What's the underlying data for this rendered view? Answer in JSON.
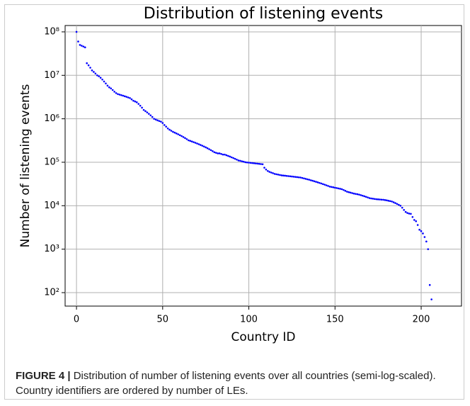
{
  "chart_data": {
    "type": "scatter",
    "title": "Distribution of listening events",
    "xlabel": "Country ID",
    "ylabel": "Number of listening events",
    "caption_label": "FIGURE 4 |",
    "caption_text": "Distribution of number of listening events over all countries (semi-log-scaled). Country identifiers are ordered by number of LEs.",
    "color": "#0000ff",
    "log_y": true,
    "grid": true,
    "xlim": [
      -6.6,
      223.4
    ],
    "ylim": [
      49,
      140000000.0
    ],
    "xticks": [
      0,
      50,
      100,
      150,
      200
    ],
    "yticks": [
      {
        "value": 100,
        "label": "10²"
      },
      {
        "value": 1000,
        "label": "10³"
      },
      {
        "value": 10000,
        "label": "10⁴"
      },
      {
        "value": 100000,
        "label": "10⁵"
      },
      {
        "value": 1000000,
        "label": "10⁶"
      },
      {
        "value": 10000000,
        "label": "10⁷"
      },
      {
        "value": 100000000,
        "label": "10⁸"
      }
    ],
    "x": [
      0,
      1,
      2,
      3,
      4,
      5,
      6,
      7,
      8,
      9,
      10,
      11,
      12,
      13,
      14,
      15,
      16,
      17,
      18,
      19,
      20,
      21,
      22,
      23,
      24,
      25,
      26,
      27,
      28,
      29,
      30,
      31,
      32,
      33,
      34,
      35,
      36,
      37,
      38,
      39,
      40,
      41,
      42,
      43,
      44,
      45,
      46,
      47,
      48,
      49,
      50,
      51,
      52,
      53,
      54,
      55,
      56,
      57,
      58,
      59,
      60,
      61,
      62,
      63,
      64,
      65,
      66,
      67,
      68,
      69,
      70,
      71,
      72,
      73,
      74,
      75,
      76,
      77,
      78,
      79,
      80,
      81,
      82,
      83,
      84,
      85,
      86,
      87,
      88,
      89,
      90,
      91,
      92,
      93,
      94,
      95,
      96,
      97,
      98,
      99,
      100,
      101,
      102,
      103,
      104,
      105,
      106,
      107,
      108,
      109,
      110,
      111,
      112,
      113,
      114,
      115,
      116,
      117,
      118,
      119,
      120,
      121,
      122,
      123,
      124,
      125,
      126,
      127,
      128,
      129,
      130,
      131,
      132,
      133,
      134,
      135,
      136,
      137,
      138,
      139,
      140,
      141,
      142,
      143,
      144,
      145,
      146,
      147,
      148,
      149,
      150,
      151,
      152,
      153,
      154,
      155,
      156,
      157,
      158,
      159,
      160,
      161,
      162,
      163,
      164,
      165,
      166,
      167,
      168,
      169,
      170,
      171,
      172,
      173,
      174,
      175,
      176,
      177,
      178,
      179,
      180,
      181,
      182,
      183,
      184,
      185,
      186,
      187,
      188,
      189,
      190,
      191,
      192,
      193,
      194,
      195,
      196,
      197,
      198,
      199,
      200,
      201,
      202,
      203,
      204,
      205,
      206
    ],
    "values": [
      100000000.0,
      60000000.0,
      50000000.0,
      48000000.0,
      46000000.0,
      44000000.0,
      19000000.0,
      17000000.0,
      15000000.0,
      13000000.0,
      12000000.0,
      11000000.0,
      10000000.0,
      9500000.0,
      8800000.0,
      8000000.0,
      7200000.0,
      6500000.0,
      5800000.0,
      5300000.0,
      5000000.0,
      4600000.0,
      4200000.0,
      3900000.0,
      3700000.0,
      3600000.0,
      3500000.0,
      3400000.0,
      3300000.0,
      3200000.0,
      3100000.0,
      3000000.0,
      2800000.0,
      2600000.0,
      2500000.0,
      2400000.0,
      2200000.0,
      2000000.0,
      1800000.0,
      1600000.0,
      1500000.0,
      1400000.0,
      1300000.0,
      1200000.0,
      1100000.0,
      1000000.0,
      960000.0,
      920000.0,
      890000.0,
      860000.0,
      800000.0,
      720000.0,
      660000.0,
      600000.0,
      560000.0,
      530000.0,
      500000.0,
      480000.0,
      460000.0,
      440000.0,
      420000.0,
      400000.0,
      380000.0,
      360000.0,
      340000.0,
      320000.0,
      310000.0,
      300000.0,
      290000.0,
      280000.0,
      270000.0,
      260000.0,
      250000.0,
      240000.0,
      230000.0,
      220000.0,
      210000.0,
      200000.0,
      190000.0,
      180000.0,
      170000.0,
      165000.0,
      160000.0,
      160000.0,
      155000.0,
      150000.0,
      150000.0,
      145000.0,
      140000.0,
      135000.0,
      130000.0,
      125000.0,
      120000.0,
      115000.0,
      110000.0,
      108000.0,
      105000.0,
      103000.0,
      100000.0,
      99000.0,
      98000.0,
      97000.0,
      96000.0,
      95000.0,
      94000.0,
      93000.0,
      92000.0,
      91000.0,
      90000.0,
      75000.0,
      68000.0,
      63000.0,
      60000.0,
      58000.0,
      56000.0,
      54000.0,
      53000.0,
      52000.0,
      51000.0,
      50000.0,
      49500.0,
      49000.0,
      48500.0,
      48000.0,
      47500.0,
      47000.0,
      46500.0,
      46000.0,
      45500.0,
      45000.0,
      44500.0,
      43500.0,
      42500.0,
      41500.0,
      40500.0,
      39500.0,
      38500.0,
      37500.0,
      36500.0,
      35500.0,
      34500.0,
      33500.0,
      32500.0,
      31500.0,
      30500.0,
      29500.0,
      28500.0,
      27500.0,
      27000.0,
      26500.0,
      26000.0,
      25500.0,
      25000.0,
      24500.0,
      24000.0,
      23000.0,
      22000.0,
      21000.0,
      20500.0,
      20000.0,
      19500.0,
      19000.0,
      18700.0,
      18400.0,
      18000.0,
      17500.0,
      17000.0,
      16500.0,
      16000.0,
      15500.0,
      15000.0,
      14700.0,
      14500.0,
      14300.0,
      14100.0,
      14000.0,
      13900.0,
      13800.0,
      13700.0,
      13500.0,
      13300.0,
      13000.0,
      12800.0,
      12500.0,
      12000.0,
      11500.0,
      11000.0,
      10500.0,
      10000.0,
      9000.0,
      8000.0,
      7200.0,
      6800.0,
      6600.0,
      6500.0,
      5500.0,
      4700.0,
      4400.0,
      3600.0,
      2800.0,
      2600.0,
      2300.0,
      1900.0,
      1500.0,
      1000.0,
      150,
      70
    ]
  }
}
